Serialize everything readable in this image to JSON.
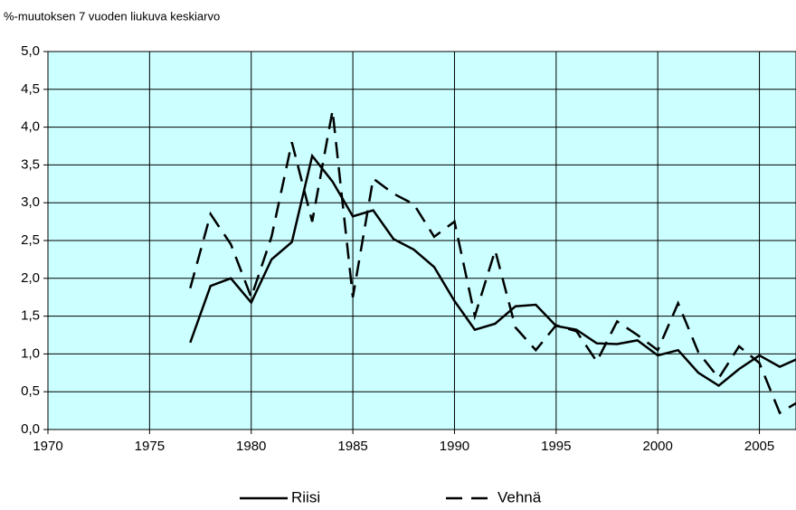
{
  "chart_data": {
    "type": "line",
    "title": "%-muutoksen 7 vuoden liukuva keskiarvo",
    "x": [
      1977,
      1978,
      1979,
      1980,
      1981,
      1982,
      1983,
      1984,
      1985,
      1986,
      1987,
      1988,
      1989,
      1990,
      1991,
      1992,
      1993,
      1994,
      1995,
      1996,
      1997,
      1998,
      1999,
      2000,
      2001,
      2002,
      2003,
      2004,
      2005,
      2006,
      2007
    ],
    "series": [
      {
        "name": "Riisi",
        "color": "#000000",
        "dash": "solid",
        "values": [
          1.15,
          1.9,
          2.0,
          1.68,
          2.25,
          2.48,
          3.62,
          3.28,
          2.82,
          2.9,
          2.52,
          2.38,
          2.15,
          1.7,
          1.32,
          1.4,
          1.63,
          1.65,
          1.37,
          1.32,
          1.14,
          1.13,
          1.18,
          0.98,
          1.05,
          0.75,
          0.58,
          0.8,
          0.98,
          0.83,
          0.95
        ]
      },
      {
        "name": "Vehnä",
        "color": "#000000",
        "dash": "dashed",
        "values": [
          1.87,
          2.85,
          2.45,
          1.75,
          2.55,
          3.8,
          2.75,
          4.22,
          1.75,
          3.32,
          3.12,
          2.98,
          2.55,
          2.75,
          1.5,
          2.37,
          1.35,
          1.05,
          1.38,
          1.3,
          0.9,
          1.43,
          1.25,
          1.05,
          1.67,
          1.02,
          0.68,
          1.1,
          0.88,
          0.22,
          0.38
        ]
      }
    ],
    "xlim": [
      1970,
      2006.8
    ],
    "xticks": [
      1970,
      1975,
      1980,
      1985,
      1990,
      1995,
      2000,
      2005
    ],
    "ylim": [
      0,
      5
    ],
    "yticks": [
      {
        "value": 0,
        "label": "0,0"
      },
      {
        "value": 0.5,
        "label": "0,5"
      },
      {
        "value": 1,
        "label": "1,0"
      },
      {
        "value": 1.5,
        "label": "1,5"
      },
      {
        "value": 2,
        "label": "2,0"
      },
      {
        "value": 2.5,
        "label": "2,5"
      },
      {
        "value": 3,
        "label": "3,0"
      },
      {
        "value": 3.5,
        "label": "3,5"
      },
      {
        "value": 4,
        "label": "4,0"
      },
      {
        "value": 4.5,
        "label": "4,5"
      },
      {
        "value": 5,
        "label": "5,0"
      }
    ],
    "grid": true,
    "background": "#ccffff",
    "legend": "bottom"
  }
}
